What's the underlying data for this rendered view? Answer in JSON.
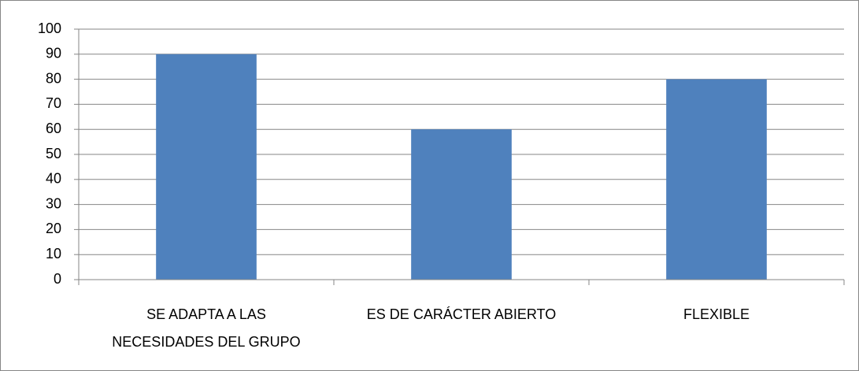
{
  "chart_data": {
    "type": "bar",
    "categories": [
      "SE ADAPTA A LAS\nNECESIDADES DEL GRUPO",
      "ES DE CARÁCTER ABIERTO",
      "FLEXIBLE"
    ],
    "values": [
      90,
      60,
      80
    ],
    "color": "#4f81bd",
    "ylim": [
      0,
      100
    ],
    "yticks": [
      0,
      10,
      20,
      30,
      40,
      50,
      60,
      70,
      80,
      90,
      100
    ],
    "grid": true
  }
}
